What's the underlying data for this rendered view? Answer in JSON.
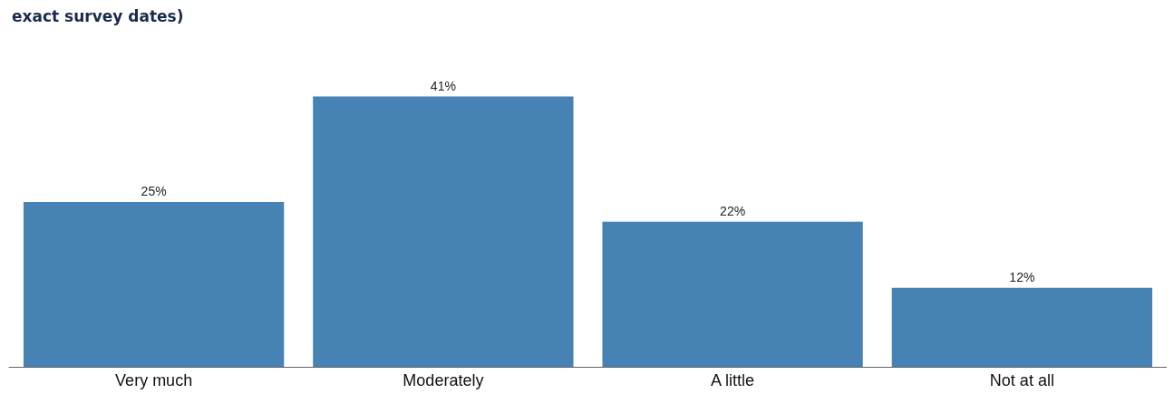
{
  "chart_data": {
    "type": "bar",
    "title": "exact survey dates)",
    "categories": [
      "Very much",
      "Moderately",
      "A little",
      "Not at all"
    ],
    "values": [
      25,
      41,
      22,
      12
    ],
    "value_labels": [
      "25%",
      "41%",
      "22%",
      "12%"
    ],
    "color": "#4682b4"
  }
}
